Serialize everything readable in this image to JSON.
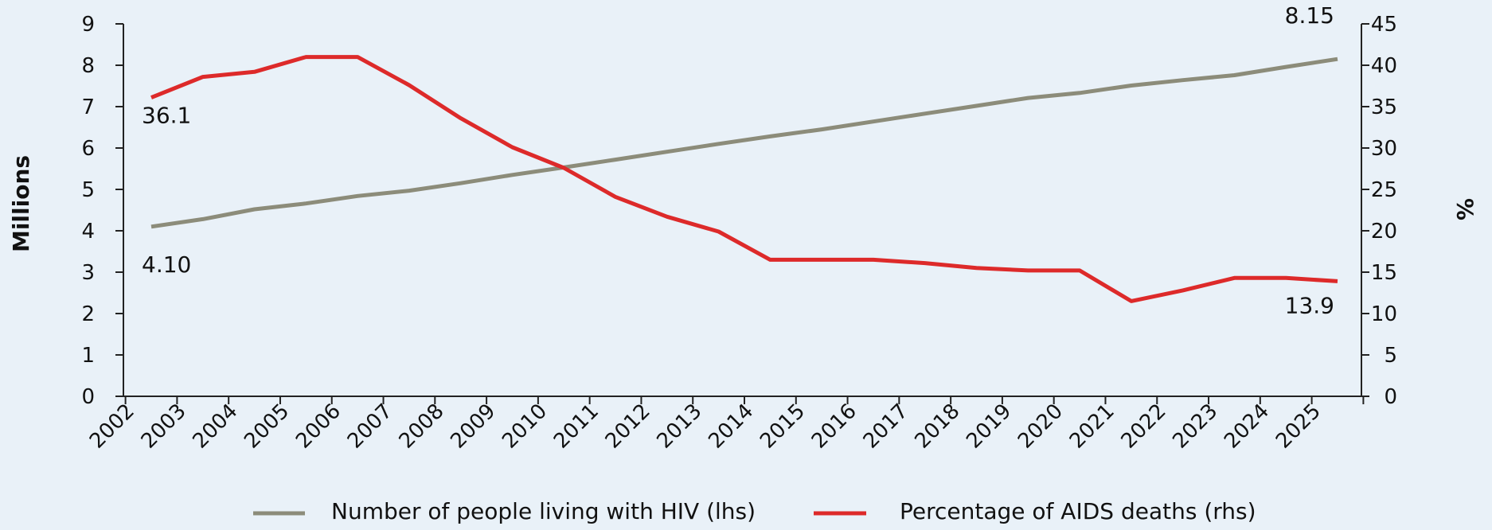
{
  "chart_data": {
    "type": "line",
    "categories": [
      "2002",
      "2003",
      "2004",
      "2005",
      "2006",
      "2007",
      "2008",
      "2009",
      "2010",
      "2011",
      "2012",
      "2013",
      "2014",
      "2015",
      "2016",
      "2017",
      "2018",
      "2019",
      "2020",
      "2021",
      "2022",
      "2023",
      "2024",
      "2025"
    ],
    "series": [
      {
        "name": "Number of people living with HIV (lhs)",
        "axis": "left",
        "color": "#8c8c7a",
        "values": [
          4.1,
          4.28,
          4.52,
          4.66,
          4.84,
          4.97,
          5.15,
          5.35,
          5.53,
          5.72,
          5.91,
          6.1,
          6.28,
          6.45,
          6.64,
          6.83,
          7.02,
          7.21,
          7.33,
          7.51,
          7.64,
          7.76,
          7.96,
          8.15
        ]
      },
      {
        "name": "Percentage of AIDS deaths (rhs)",
        "axis": "right",
        "color": "#dd2a2a",
        "values": [
          36.1,
          38.6,
          39.2,
          41.0,
          41.0,
          37.6,
          33.6,
          30.1,
          27.6,
          24.1,
          21.7,
          19.9,
          16.5,
          16.5,
          16.5,
          16.1,
          15.5,
          15.2,
          15.2,
          11.5,
          12.8,
          14.3,
          14.3,
          13.9
        ]
      }
    ],
    "ylabel_left": "Millions",
    "ylabel_right": "%",
    "ylim_left": [
      0,
      9
    ],
    "ylim_right": [
      0,
      45
    ],
    "yticks_left": [
      "0",
      "1",
      "2",
      "3",
      "4",
      "5",
      "6",
      "7",
      "8",
      "9"
    ],
    "yticks_right": [
      "0",
      "5",
      "10",
      "15",
      "20",
      "25",
      "30",
      "35",
      "40",
      "45"
    ],
    "grid": false,
    "legend_position": "bottom",
    "annotations": {
      "hiv_start": "4.10",
      "hiv_end": "8.15",
      "deaths_start": "36.1",
      "deaths_end": "13.9"
    }
  }
}
